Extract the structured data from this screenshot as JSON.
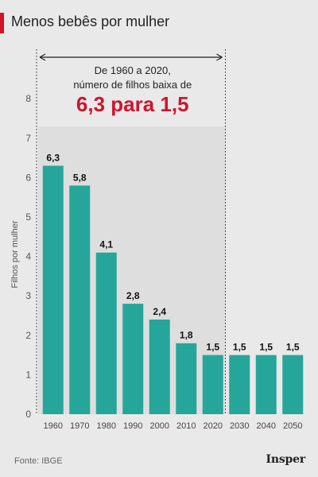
{
  "header": {
    "title": "Menos bebês por mulher"
  },
  "source": "Fonte: IBGE",
  "logo": "Insper",
  "colors": {
    "accent": "#d0142c",
    "bar": "#26a69a",
    "background": "#e9e9e9"
  },
  "annotation": {
    "line1": "De 1960 a 2020,",
    "line2": "número de filhos baixa de",
    "highlight": "6,3 para 1,5",
    "x_range": [
      "1960",
      "2020"
    ]
  },
  "chart_data": {
    "type": "bar",
    "title": "Menos bebês por mulher",
    "ylabel": "Filhos por mulher",
    "xlabel": "",
    "ylim": [
      0,
      8
    ],
    "yticks": [
      0,
      1,
      2,
      3,
      4,
      5,
      6,
      7,
      8
    ],
    "grid": false,
    "categories": [
      "1960",
      "1970",
      "1980",
      "1990",
      "2000",
      "2010",
      "2020",
      "2030",
      "2040",
      "2050"
    ],
    "values": [
      6.3,
      5.8,
      4.1,
      2.8,
      2.4,
      1.8,
      1.5,
      1.5,
      1.5,
      1.5
    ],
    "value_labels": [
      "6,3",
      "5,8",
      "4,1",
      "2,8",
      "2,4",
      "1,8",
      "1,5",
      "1,5",
      "1,5",
      "1,5"
    ],
    "shaded_region": [
      "1960",
      "2020"
    ]
  }
}
